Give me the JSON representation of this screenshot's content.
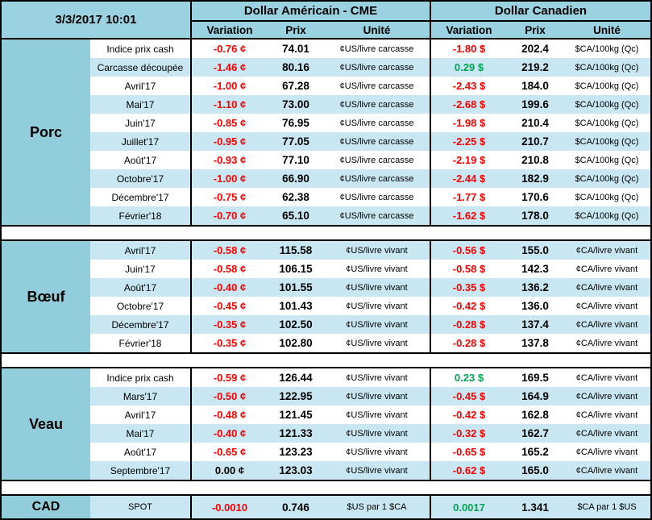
{
  "chart_data": {
    "type": "table",
    "header": {
      "datetime": "3/3/2017 10:01",
      "usd_title": "Dollar Américain - CME",
      "cad_title": "Dollar Canadien",
      "columns": {
        "variation": "Variation",
        "prix": "Prix",
        "unite": "Unité"
      }
    },
    "colors": {
      "header_blue": "#9AD2E1",
      "section_blue": "#92CDDC",
      "stripe_blue": "#C8E7F2",
      "negative_red": "#FF0000",
      "positive_green": "#00A550"
    },
    "sections": [
      {
        "key": "porc",
        "label": "Porc",
        "first_row_shaded": false,
        "rows": [
          {
            "label": "Indice prix cash",
            "us": {
              "var": "-0.76 ¢",
              "trend": "down",
              "prix": "74.01",
              "unit": "¢US/livre carcasse"
            },
            "ca": {
              "var": "-1.80 $",
              "trend": "down",
              "prix": "202.4",
              "unit": "$CA/100kg (Qc)"
            }
          },
          {
            "label": "Carcasse découpée",
            "us": {
              "var": "-1.46 ¢",
              "trend": "down",
              "prix": "80.16",
              "unit": "¢US/livre carcasse"
            },
            "ca": {
              "var": "0.29 $",
              "trend": "up",
              "prix": "219.2",
              "unit": "$CA/100kg (Qc)"
            }
          },
          {
            "label": "Avril'17",
            "us": {
              "var": "-1.00 ¢",
              "trend": "down",
              "prix": "67.28",
              "unit": "¢US/livre carcasse"
            },
            "ca": {
              "var": "-2.43 $",
              "trend": "down",
              "prix": "184.0",
              "unit": "$CA/100kg (Qc)"
            }
          },
          {
            "label": "Mai'17",
            "us": {
              "var": "-1.10 ¢",
              "trend": "down",
              "prix": "73.00",
              "unit": "¢US/livre carcasse"
            },
            "ca": {
              "var": "-2.68 $",
              "trend": "down",
              "prix": "199.6",
              "unit": "$CA/100kg (Qc)"
            }
          },
          {
            "label": "Juin'17",
            "us": {
              "var": "-0.85 ¢",
              "trend": "down",
              "prix": "76.95",
              "unit": "¢US/livre carcasse"
            },
            "ca": {
              "var": "-1.98 $",
              "trend": "down",
              "prix": "210.4",
              "unit": "$CA/100kg (Qc)"
            }
          },
          {
            "label": "Juillet'17",
            "us": {
              "var": "-0.95 ¢",
              "trend": "down",
              "prix": "77.05",
              "unit": "¢US/livre carcasse"
            },
            "ca": {
              "var": "-2.25 $",
              "trend": "down",
              "prix": "210.7",
              "unit": "$CA/100kg (Qc)"
            }
          },
          {
            "label": "Août'17",
            "us": {
              "var": "-0.93 ¢",
              "trend": "down",
              "prix": "77.10",
              "unit": "¢US/livre carcasse"
            },
            "ca": {
              "var": "-2.19 $",
              "trend": "down",
              "prix": "210.8",
              "unit": "$CA/100kg (Qc)"
            }
          },
          {
            "label": "Octobre'17",
            "us": {
              "var": "-1.00 ¢",
              "trend": "down",
              "prix": "66.90",
              "unit": "¢US/livre carcasse"
            },
            "ca": {
              "var": "-2.44 $",
              "trend": "down",
              "prix": "182.9",
              "unit": "$CA/100kg (Qc)"
            }
          },
          {
            "label": "Décembre'17",
            "us": {
              "var": "-0.75 ¢",
              "trend": "down",
              "prix": "62.38",
              "unit": "¢US/livre carcasse"
            },
            "ca": {
              "var": "-1.77 $",
              "trend": "down",
              "prix": "170.6",
              "unit": "$CA/100kg (Qc)"
            }
          },
          {
            "label": "Février'18",
            "us": {
              "var": "-0.70 ¢",
              "trend": "down",
              "prix": "65.10",
              "unit": "¢US/livre carcasse"
            },
            "ca": {
              "var": "-1.62 $",
              "trend": "down",
              "prix": "178.0",
              "unit": "$CA/100kg (Qc)"
            }
          }
        ]
      },
      {
        "key": "boeuf",
        "label": "Bœuf",
        "first_row_shaded": true,
        "rows": [
          {
            "label": "Avril'17",
            "us": {
              "var": "-0.58 ¢",
              "trend": "down",
              "prix": "115.58",
              "unit": "¢US/livre vivant"
            },
            "ca": {
              "var": "-0.56 $",
              "trend": "down",
              "prix": "155.0",
              "unit": "¢CA/livre vivant"
            }
          },
          {
            "label": "Juin'17",
            "us": {
              "var": "-0.58 ¢",
              "trend": "down",
              "prix": "106.15",
              "unit": "¢US/livre vivant"
            },
            "ca": {
              "var": "-0.58 $",
              "trend": "down",
              "prix": "142.3",
              "unit": "¢CA/livre vivant"
            }
          },
          {
            "label": "Août'17",
            "us": {
              "var": "-0.40 ¢",
              "trend": "down",
              "prix": "101.55",
              "unit": "¢US/livre vivant"
            },
            "ca": {
              "var": "-0.35 $",
              "trend": "down",
              "prix": "136.2",
              "unit": "¢CA/livre vivant"
            }
          },
          {
            "label": "Octobre'17",
            "us": {
              "var": "-0.45 ¢",
              "trend": "down",
              "prix": "101.43",
              "unit": "¢US/livre vivant"
            },
            "ca": {
              "var": "-0.42 $",
              "trend": "down",
              "prix": "136.0",
              "unit": "¢CA/livre vivant"
            }
          },
          {
            "label": "Décembre'17",
            "us": {
              "var": "-0.35 ¢",
              "trend": "down",
              "prix": "102.50",
              "unit": "¢US/livre vivant"
            },
            "ca": {
              "var": "-0.28 $",
              "trend": "down",
              "prix": "137.4",
              "unit": "¢CA/livre vivant"
            }
          },
          {
            "label": "Février'18",
            "us": {
              "var": "-0.35 ¢",
              "trend": "down",
              "prix": "102.80",
              "unit": "¢US/livre vivant"
            },
            "ca": {
              "var": "-0.28 $",
              "trend": "down",
              "prix": "137.8",
              "unit": "¢CA/livre vivant"
            }
          }
        ]
      },
      {
        "key": "veau",
        "label": "Veau",
        "first_row_shaded": false,
        "rows": [
          {
            "label": "Indice prix cash",
            "us": {
              "var": "-0.59 ¢",
              "trend": "down",
              "prix": "126.44",
              "unit": "¢US/livre vivant"
            },
            "ca": {
              "var": "0.23 $",
              "trend": "up",
              "prix": "169.5",
              "unit": "¢CA/livre vivant"
            }
          },
          {
            "label": "Mars'17",
            "us": {
              "var": "-0.50 ¢",
              "trend": "down",
              "prix": "122.95",
              "unit": "¢US/livre vivant"
            },
            "ca": {
              "var": "-0.45 $",
              "trend": "down",
              "prix": "164.9",
              "unit": "¢CA/livre vivant"
            }
          },
          {
            "label": "Avril'17",
            "us": {
              "var": "-0.48 ¢",
              "trend": "down",
              "prix": "121.45",
              "unit": "¢US/livre vivant"
            },
            "ca": {
              "var": "-0.42 $",
              "trend": "down",
              "prix": "162.8",
              "unit": "¢CA/livre vivant"
            }
          },
          {
            "label": "Mai'17",
            "us": {
              "var": "-0.40 ¢",
              "trend": "down",
              "prix": "121.33",
              "unit": "¢US/livre vivant"
            },
            "ca": {
              "var": "-0.32 $",
              "trend": "down",
              "prix": "162.7",
              "unit": "¢CA/livre vivant"
            }
          },
          {
            "label": "Août'17",
            "us": {
              "var": "-0.65 ¢",
              "trend": "down",
              "prix": "123.23",
              "unit": "¢US/livre vivant"
            },
            "ca": {
              "var": "-0.65 $",
              "trend": "down",
              "prix": "165.2",
              "unit": "¢CA/livre vivant"
            }
          },
          {
            "label": "Septembre'17",
            "us": {
              "var": "0.00 ¢",
              "trend": "flat",
              "prix": "123.03",
              "unit": "¢US/livre vivant"
            },
            "ca": {
              "var": "-0.62 $",
              "trend": "down",
              "prix": "165.0",
              "unit": "¢CA/livre vivant"
            }
          }
        ]
      }
    ],
    "cad": {
      "label": "CAD",
      "row_label": "SPOT",
      "us": {
        "var": "-0.0010",
        "trend": "down",
        "prix": "0.746",
        "unit": "$US par 1 $CA"
      },
      "ca": {
        "var": "0.0017",
        "trend": "up",
        "prix": "1.341",
        "unit": "$CA par 1 $US"
      }
    }
  }
}
